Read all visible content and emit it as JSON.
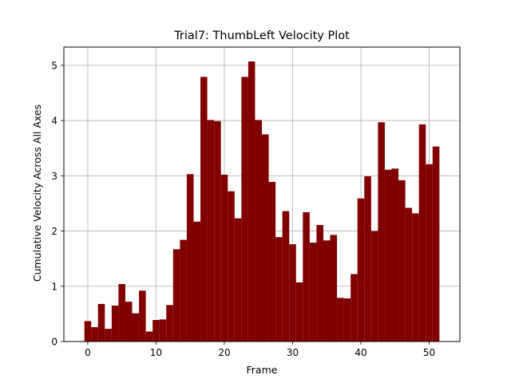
{
  "chart_data": {
    "type": "bar",
    "title": "Trial7: ThumbLeft Velocity Plot",
    "xlabel": "Frame",
    "ylabel": "Cumulative Velocity Across All Axes",
    "x": [
      0,
      1,
      2,
      3,
      4,
      5,
      6,
      7,
      8,
      9,
      10,
      11,
      12,
      13,
      14,
      15,
      16,
      17,
      18,
      19,
      20,
      21,
      22,
      23,
      24,
      25,
      26,
      27,
      28,
      29,
      30,
      31,
      32,
      33,
      34,
      35,
      36,
      37,
      38,
      39,
      40,
      41,
      42,
      43,
      44,
      45,
      46,
      47,
      48,
      49,
      50,
      51
    ],
    "values": [
      0.37,
      0.26,
      0.68,
      0.23,
      0.65,
      1.04,
      0.72,
      0.51,
      0.92,
      0.18,
      0.39,
      0.4,
      0.66,
      1.67,
      1.84,
      3.03,
      2.17,
      4.79,
      4.01,
      3.99,
      3.02,
      2.72,
      2.23,
      4.79,
      5.07,
      4.01,
      3.75,
      2.89,
      1.89,
      2.36,
      1.76,
      1.07,
      2.34,
      1.79,
      2.11,
      1.83,
      1.93,
      0.79,
      0.78,
      1.22,
      2.59,
      2.99,
      2.0,
      3.97,
      3.11,
      3.13,
      2.92,
      2.42,
      2.32,
      3.93,
      3.21,
      3.53
    ],
    "xlim": [
      -3.5,
      54.5
    ],
    "ylim": [
      0,
      5.33
    ],
    "xticks": [
      0,
      10,
      20,
      30,
      40,
      50
    ],
    "yticks": [
      0,
      1,
      2,
      3,
      4,
      5
    ],
    "grid": true,
    "bar_color": "#800000",
    "grid_color": "#b0b0b0"
  }
}
